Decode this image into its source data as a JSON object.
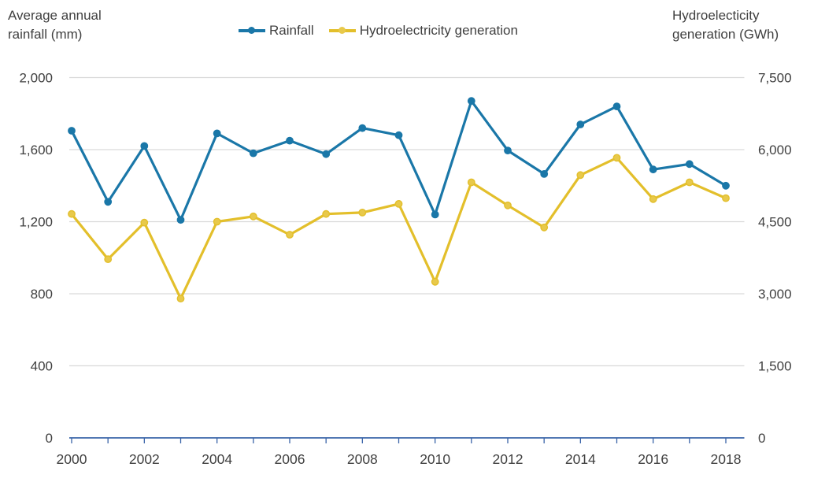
{
  "header": {
    "left_axis_title_line1": "Average annual",
    "left_axis_title_line2": "rainfall (mm)",
    "right_axis_title_line1": "Hydroelecticity",
    "right_axis_title_line2": "generation (GWh)"
  },
  "legend": {
    "items": [
      {
        "label": "Rainfall",
        "color": "#1A77A8",
        "marker_fill": "#1A77A8"
      },
      {
        "label": "Hydroelectricity generation",
        "color": "#E3BF2B",
        "marker_fill": "#E8C94B"
      }
    ]
  },
  "chart_data": {
    "type": "line",
    "title": "",
    "x": [
      2000,
      2001,
      2002,
      2003,
      2004,
      2005,
      2006,
      2007,
      2008,
      2009,
      2010,
      2011,
      2012,
      2013,
      2014,
      2015,
      2016,
      2017,
      2018
    ],
    "x_labeled_ticks": [
      2000,
      2002,
      2004,
      2006,
      2008,
      2010,
      2012,
      2014,
      2016,
      2018
    ],
    "series": [
      {
        "name": "Rainfall",
        "axis": "left",
        "color": "#1A77A8",
        "marker_fill": "#1A77A8",
        "values": [
          1705,
          1310,
          1620,
          1210,
          1690,
          1580,
          1650,
          1575,
          1720,
          1680,
          1240,
          1870,
          1595,
          1465,
          1740,
          1840,
          1490,
          1520,
          1400
        ]
      },
      {
        "name": "Hydroelectricity generation",
        "axis": "right",
        "color": "#E3BF2B",
        "marker_fill": "#E8C94B",
        "values": [
          4660,
          3720,
          4480,
          2900,
          4500,
          4610,
          4230,
          4660,
          4690,
          4870,
          3250,
          5320,
          4840,
          4380,
          5470,
          5830,
          4970,
          5320,
          4990
        ]
      }
    ],
    "left_axis": {
      "label": "Average annual rainfall (mm)",
      "ticks": [
        0,
        400,
        800,
        1200,
        1600,
        2000
      ],
      "range": [
        0,
        2000
      ]
    },
    "right_axis": {
      "label": "Hydroelecticity generation (GWh)",
      "ticks": [
        0,
        1500,
        3000,
        4500,
        6000,
        7500
      ],
      "range": [
        0,
        7500
      ]
    },
    "grid": "horizontal",
    "legend_position": "top",
    "colors": {
      "grid": "#D9D9D9",
      "axis": "#3A64A8",
      "text": "#404040"
    }
  }
}
